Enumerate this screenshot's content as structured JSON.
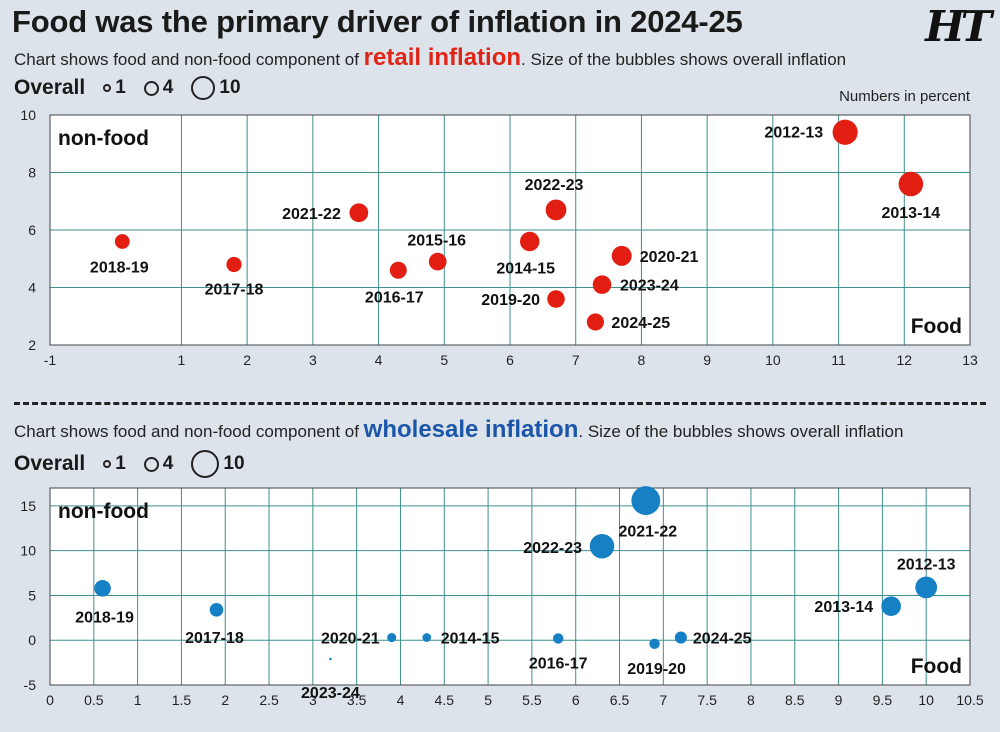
{
  "headline": "Food was the primary driver of inflation in 2024-25",
  "logo_text": "HT",
  "units_note": "Numbers in percent",
  "retail": {
    "subtitle_pre": "Chart shows food and non-food component of ",
    "subtitle_hl": "retail inflation",
    "subtitle_post": ". Size of the bubbles shows overall inflation",
    "legend": {
      "title": "Overall",
      "items": [
        "1",
        "4",
        "10"
      ]
    },
    "bubble_color": "#e21d12"
  },
  "wholesale": {
    "subtitle_pre": "Chart shows food and non-food component of ",
    "subtitle_hl": "wholesale inflation",
    "subtitle_post": ". Size of the bubbles shows overall inflation",
    "legend": {
      "title": "Overall",
      "items": [
        "1",
        "4",
        "10"
      ]
    },
    "bubble_color": "#1581c4"
  },
  "chart_data": [
    {
      "type": "scatter",
      "title": "retail inflation",
      "xlabel": "Food",
      "ylabel": "non-food",
      "xlim": [
        -1,
        13
      ],
      "ylim": [
        2,
        10
      ],
      "xticks": [
        "-1",
        "1",
        "2",
        "3",
        "4",
        "5",
        "6",
        "7",
        "8",
        "9",
        "10",
        "11",
        "12",
        "13"
      ],
      "yticks": [
        "2",
        "4",
        "6",
        "8",
        "10"
      ],
      "grid": true,
      "points": [
        {
          "label": "2012-13",
          "x": 11.1,
          "y": 9.4,
          "size": 9.9
        },
        {
          "label": "2013-14",
          "x": 12.1,
          "y": 7.6,
          "size": 9.4
        },
        {
          "label": "2014-15",
          "x": 6.3,
          "y": 5.6,
          "size": 5.9
        },
        {
          "label": "2015-16",
          "x": 4.9,
          "y": 4.9,
          "size": 4.9
        },
        {
          "label": "2016-17",
          "x": 4.3,
          "y": 4.6,
          "size": 4.5
        },
        {
          "label": "2017-18",
          "x": 1.8,
          "y": 4.8,
          "size": 3.6
        },
        {
          "label": "2018-19",
          "x": 0.1,
          "y": 5.6,
          "size": 3.4
        },
        {
          "label": "2019-20",
          "x": 6.7,
          "y": 3.6,
          "size": 4.8
        },
        {
          "label": "2020-21",
          "x": 7.7,
          "y": 5.1,
          "size": 6.2
        },
        {
          "label": "2021-22",
          "x": 3.7,
          "y": 6.6,
          "size": 5.5
        },
        {
          "label": "2022-23",
          "x": 6.7,
          "y": 6.7,
          "size": 6.7
        },
        {
          "label": "2023-24",
          "x": 7.4,
          "y": 4.1,
          "size": 5.4
        },
        {
          "label": "2024-25",
          "x": 7.3,
          "y": 2.8,
          "size": 4.6
        }
      ]
    },
    {
      "type": "scatter",
      "title": "wholesale inflation",
      "xlabel": "Food",
      "ylabel": "non-food",
      "xlim": [
        0,
        10.5
      ],
      "ylim": [
        -5,
        17
      ],
      "xticks": [
        "0",
        "0.5",
        "1",
        "1.5",
        "2",
        "2.5",
        "3",
        "3.5",
        "4",
        "4.5",
        "5",
        "5.5",
        "6",
        "6.5",
        "7",
        "7.5",
        "8",
        "8.5",
        "9",
        "9.5",
        "10",
        "10.5"
      ],
      "yticks": [
        "-5",
        "0",
        "5",
        "10",
        "15"
      ],
      "grid": true,
      "points": [
        {
          "label": "2012-13",
          "x": 10.0,
          "y": 5.9,
          "size": 7.4
        },
        {
          "label": "2013-14",
          "x": 9.6,
          "y": 3.8,
          "size": 6.0
        },
        {
          "label": "2014-15",
          "x": 4.3,
          "y": 0.3,
          "size": 1.2
        },
        {
          "label": "2016-17",
          "x": 5.8,
          "y": 0.2,
          "size": 1.7
        },
        {
          "label": "2017-18",
          "x": 1.9,
          "y": 3.4,
          "size": 2.9
        },
        {
          "label": "2018-19",
          "x": 0.6,
          "y": 5.8,
          "size": 4.3
        },
        {
          "label": "2019-20",
          "x": 6.9,
          "y": -0.4,
          "size": 1.7
        },
        {
          "label": "2020-21",
          "x": 3.9,
          "y": 0.3,
          "size": 1.3
        },
        {
          "label": "2021-22",
          "x": 6.8,
          "y": 15.6,
          "size": 13.0
        },
        {
          "label": "2022-23",
          "x": 6.3,
          "y": 10.5,
          "size": 9.4
        },
        {
          "label": "2023-24",
          "x": 3.2,
          "y": -2.1,
          "size": 0.1
        },
        {
          "label": "2024-25",
          "x": 7.2,
          "y": 0.3,
          "size": 2.3
        }
      ]
    }
  ]
}
